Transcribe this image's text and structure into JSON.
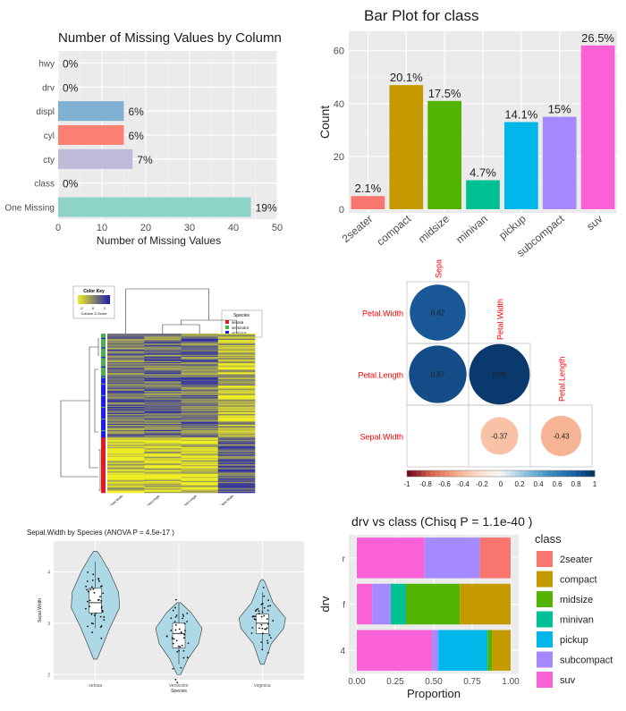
{
  "chart_data": [
    {
      "type": "bar",
      "orientation": "horizontal",
      "title": "Number of Missing Values by Column",
      "xlabel": "Number of Missing Values",
      "xlim": [
        0,
        50
      ],
      "xticks": [
        "0",
        "10",
        "20",
        "30",
        "40",
        "50"
      ],
      "categories": [
        "hwy",
        "drv",
        "displ",
        "cyl",
        "cty",
        "class",
        "One Missing"
      ],
      "values": [
        0,
        0,
        15,
        15,
        17,
        0,
        44
      ],
      "labels": [
        "0%",
        "0%",
        "6%",
        "6%",
        "7%",
        "0%",
        "19%"
      ],
      "colors": [
        "#8dd3c7",
        "#8dd3c7",
        "#80b1d3",
        "#fb8072",
        "#bebada",
        "#8dd3c7",
        "#8dd3c7"
      ],
      "grid": true
    },
    {
      "type": "bar",
      "title": "Bar Plot for class",
      "ylabel": "Count",
      "ylim": [
        0,
        66
      ],
      "yticks": [
        "0",
        "20",
        "40",
        "60"
      ],
      "categories": [
        "2seater",
        "compact",
        "midsize",
        "minivan",
        "pickup",
        "subcompact",
        "suv"
      ],
      "values": [
        5,
        47,
        41,
        11,
        33,
        35,
        62
      ],
      "labels": [
        "2.1%",
        "20.1%",
        "17.5%",
        "4.7%",
        "14.1%",
        "15%",
        "26.5%"
      ],
      "colors": [
        "#f8766d",
        "#c49a00",
        "#53b400",
        "#00c094",
        "#00b6eb",
        "#a58aff",
        "#fb61d7"
      ],
      "grid": true
    },
    {
      "type": "heatmap",
      "legend_title": "Species",
      "legend": [
        {
          "name": "setosa",
          "color": "#e41a1c"
        },
        {
          "name": "versicolor",
          "color": "#4daf4a"
        },
        {
          "name": "virginica",
          "color": "#1a1aff"
        }
      ],
      "color_key": {
        "title": "Color Key",
        "label": "Column Z-Score",
        "ticks": [
          "-2",
          "0",
          "2"
        ]
      },
      "columns": [
        "Petal.Width",
        "Petal.Length",
        "Sepal.Length",
        "Sepal.Width"
      ],
      "colors": {
        "low": "#eeee22",
        "high": "#1c1cb0"
      }
    },
    {
      "type": "heatmap",
      "subtype": "correlogram",
      "cells": [
        {
          "row": "Petal.Width",
          "col": "Sepa",
          "value": 0.82,
          "label": "0.82"
        },
        {
          "row": "Petal.Length",
          "col": "Sepa",
          "value": 0.87,
          "label": "0.87"
        },
        {
          "row": "Petal.Length",
          "col": "Petal.Width",
          "value": 0.96,
          "label": "0.96"
        },
        {
          "row": "Sepal.Width",
          "col": "Petal.Width",
          "value": -0.37,
          "label": "-0.37"
        },
        {
          "row": "Sepal.Width",
          "col": "Petal.Length",
          "value": -0.43,
          "label": "-0.43"
        }
      ],
      "row_labels": [
        "Petal.Width",
        "Petal.Length",
        "Sepal.Width"
      ],
      "col_labels": [
        "Sepa",
        "Petal.Width",
        "Petal.Length"
      ],
      "colorbar_ticks": [
        "-1",
        "-0.8",
        "-0.6",
        "-0.4",
        "-0.2",
        "0",
        "0.2",
        "0.4",
        "0.6",
        "0.8",
        "1"
      ],
      "label_color": "#ff0000"
    },
    {
      "type": "scatter",
      "subtype": "violin",
      "title": "Sepal.Width by Species (ANOVA P = 4.5e-17 )",
      "xlabel": "Species",
      "ylabel": "Sepal.Width",
      "categories": [
        "setosa",
        "versicolor",
        "virginica"
      ],
      "yticks": [
        "2",
        "3",
        "4"
      ],
      "ylim": [
        1.9,
        4.6
      ],
      "boxes": [
        {
          "q1": 3.2,
          "median": 3.4,
          "q3": 3.68,
          "min": 2.9,
          "max": 4.2
        },
        {
          "q1": 2.52,
          "median": 2.8,
          "q3": 3.0,
          "min": 2.2,
          "max": 3.4
        },
        {
          "q1": 2.8,
          "median": 3.0,
          "q3": 3.18,
          "min": 2.5,
          "max": 3.6
        }
      ],
      "fill": "#add8e6",
      "grid": true
    },
    {
      "type": "bar",
      "subtype": "stacked-proportion",
      "title": "drv vs class (Chisq P = 1.1e-40 )",
      "xlabel": "Proportion",
      "ylabel": "drv",
      "xticks": [
        "0.00",
        "0.25",
        "0.50",
        "0.75",
        "1.00"
      ],
      "categories": [
        "r",
        "f",
        "4"
      ],
      "legend_title": "class",
      "series": [
        {
          "name": "2seater",
          "color": "#f8766d",
          "values": [
            0.2,
            0,
            0
          ]
        },
        {
          "name": "compact",
          "color": "#c49a00",
          "values": [
            0,
            0.33,
            0.12
          ]
        },
        {
          "name": "midsize",
          "color": "#53b400",
          "values": [
            0,
            0.35,
            0.03
          ]
        },
        {
          "name": "minivan",
          "color": "#00c094",
          "values": [
            0,
            0.1,
            0
          ]
        },
        {
          "name": "pickup",
          "color": "#00b6eb",
          "values": [
            0,
            0,
            0.32
          ]
        },
        {
          "name": "subcompact",
          "color": "#a58aff",
          "values": [
            0.36,
            0.12,
            0.04
          ]
        },
        {
          "name": "suv",
          "color": "#fb61d7",
          "values": [
            0.44,
            0.1,
            0.49
          ]
        }
      ],
      "grid": true
    }
  ]
}
